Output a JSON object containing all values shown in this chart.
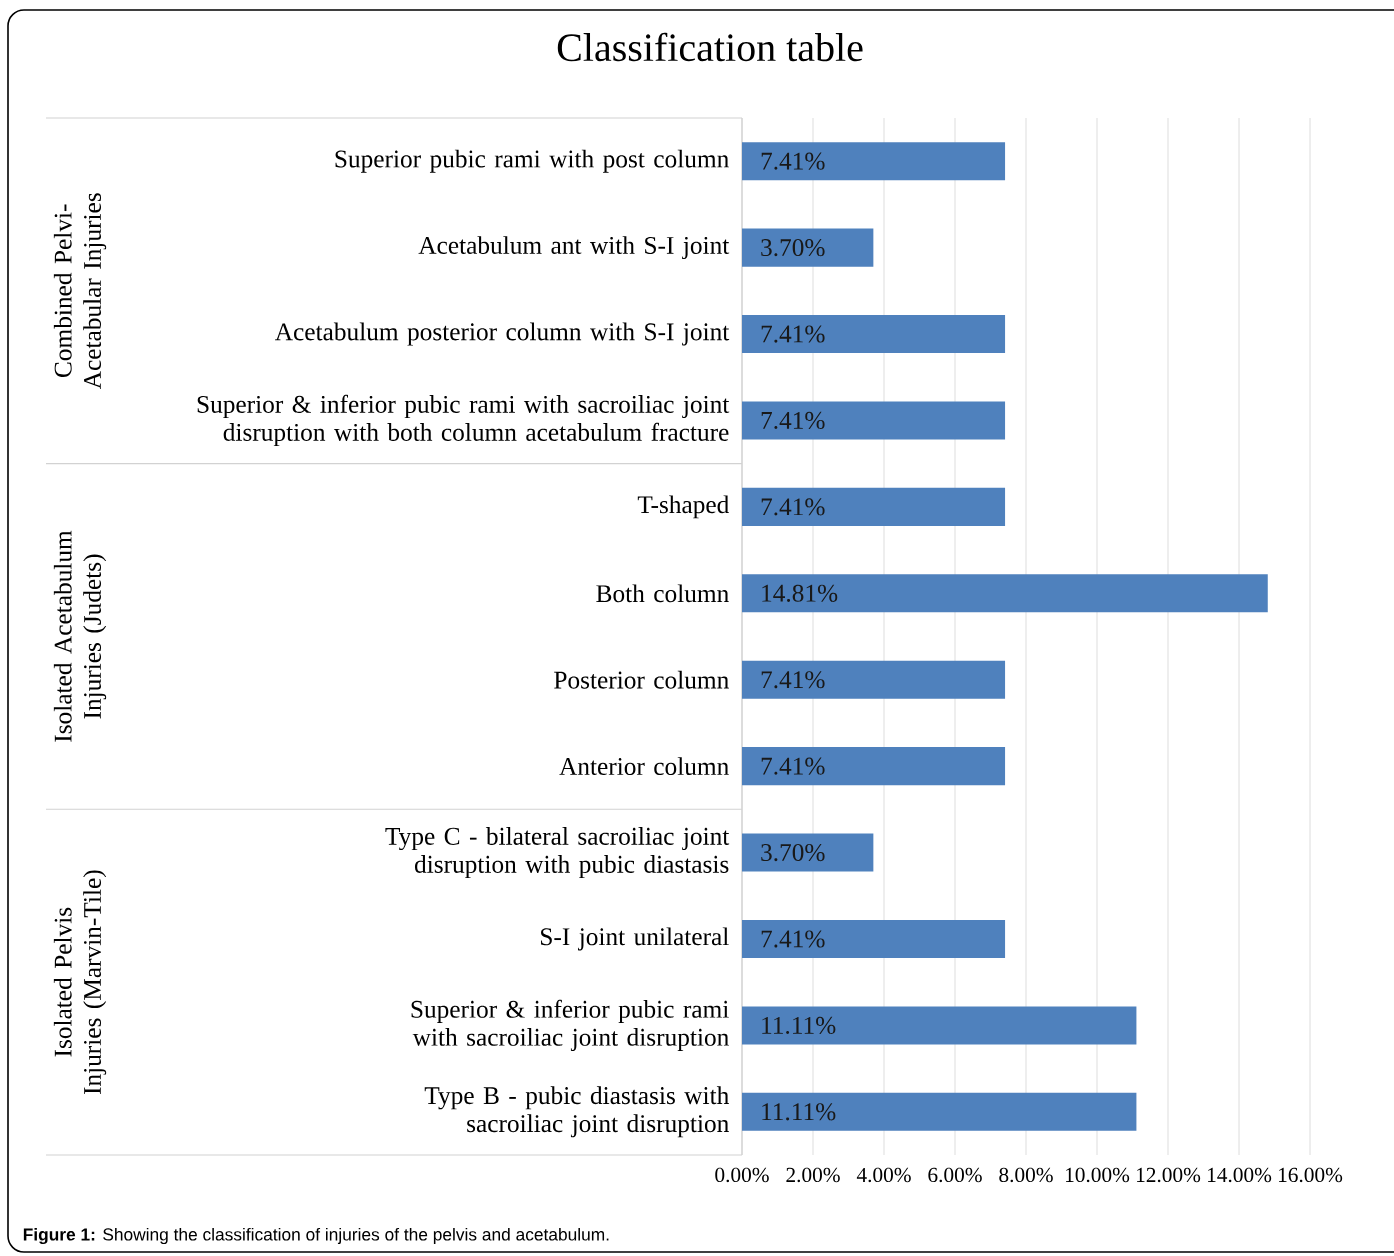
{
  "chart_data": {
    "type": "bar",
    "orientation": "horizontal",
    "title": "Classification table",
    "categories": [
      "Superior pubic rami with post column",
      "Acetabulum ant with S-I joint",
      "Acetabulum posterior column with S-I joint",
      "Superior & inferior pubic rami with sacroiliac joint disruption with both column acetabulum fracture",
      "T-shaped",
      "Both column",
      "Posterior column",
      "Anterior column",
      "Type C - bilateral sacroiliac joint disruption with pubic diastasis",
      "S-I joint unilateral",
      "Superior & inferior pubic rami with sacroiliac joint disruption",
      "Type B - pubic diastasis with sacroiliac joint disruption"
    ],
    "values": [
      7.41,
      3.7,
      7.41,
      7.41,
      7.41,
      14.81,
      7.41,
      7.41,
      3.7,
      7.41,
      11.11,
      11.11
    ],
    "value_labels": [
      "7.41%",
      "3.70%",
      "7.41%",
      "7.41%",
      "7.41%",
      "14.81%",
      "7.41%",
      "7.41%",
      "3.70%",
      "7.41%",
      "11.11%",
      "11.11%"
    ],
    "color": "#4f81bd",
    "xlim": [
      0,
      16
    ],
    "xticks": [
      {
        "value": 0,
        "label": "0.00%"
      },
      {
        "value": 2,
        "label": "2.00%"
      },
      {
        "value": 4,
        "label": "4.00%"
      },
      {
        "value": 6,
        "label": "6.00%"
      },
      {
        "value": 8,
        "label": "8.00%"
      },
      {
        "value": 10,
        "label": "10.00%"
      },
      {
        "value": 12,
        "label": "12.00%"
      },
      {
        "value": 14,
        "label": "14.00%"
      },
      {
        "value": 16,
        "label": "16.00%"
      }
    ],
    "grid": "x",
    "annotations": [
      "Combined Pelvi-Acetabular Injuries",
      "Isolated Acetabulum Injuries (Judets)",
      "Isolated Pelvis Injuries (Marvin-Tile)",
      "**Figure 1:** Showing the classification of injuries of the pelvis and acetabulum."
    ]
  }
}
